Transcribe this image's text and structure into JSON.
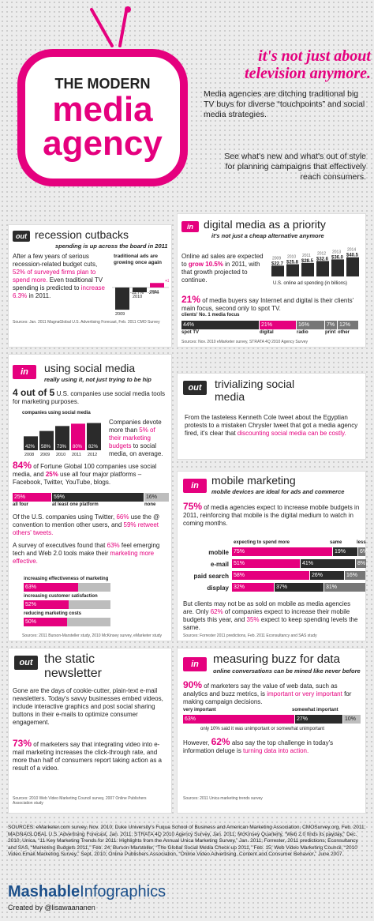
{
  "header": {
    "title_line1": "THE MODERN",
    "title_line2": "media",
    "title_line3": "agency",
    "tagline": "it's not just about television anymore.",
    "intro1": "Media agencies are ditching traditional big TV buys for diverse “touchpoints” and social media strategies.",
    "intro2": "See what's new and what's out of style for planning campaigns that effectively reach consumers."
  },
  "recession": {
    "tag": "out",
    "title": "recession cutbacks",
    "subtitle": "spending is up across the board in 2011",
    "text_pre": "After a few years of serious recession-related budget cuts, ",
    "text_pink": "52% of surveyed firms plan to spend more.",
    "text_mid": " Even traditional TV spending is predicted to ",
    "text_pink2": "increase 6.3%",
    "text_post": " in 2011.",
    "chart_title": "traditional ads are growing once again",
    "source": "Sources: Jan. 2011 MagnaGlobal U.S. Advertising Forecast, Feb. 2011 CMO Survey"
  },
  "digital": {
    "tag": "in",
    "title": "digital media as a priority",
    "subtitle": "it's not just a cheap alternative anymore",
    "text_pre": "Online ad sales are expected to ",
    "text_pink": "grow 10.5%",
    "text_post": " in 2011, with that growth projected to continue.",
    "chart_caption": "U.S. online ad spending (in billions)",
    "stat_big": "21%",
    "stat_text": " of media buyers say Internet and digital is their clients' main focus, second only to spot TV.",
    "focus_title": "clients' No. 1 media focus",
    "source": "Sources: Nov. 2010 eMarketer survey, STRATA 4Q 2010 Agency Survey"
  },
  "social": {
    "tag": "in",
    "title": "using social media",
    "subtitle": "really using it, not just trying to be hip",
    "stat_big": "4 out of 5",
    "stat_text": " U.S. companies use social media tools for marketing purposes.",
    "chart_title": "companies using social media",
    "devote_pre": "Companies devote more than ",
    "devote_pink": "5% of their marketing budgets",
    "devote_post": " to social media, on average.",
    "fortune_big": "84%",
    "fortune_text": " of Fortune Global 100 companies use social media, and ",
    "fortune_pink": "25%",
    "fortune_post": " use all four major platforms – Facebook, Twitter, YouTube, blogs.",
    "platform_labels": [
      "all four",
      "at least one platform",
      "none"
    ],
    "twitter_pre": "Of the U.S. companies using Twitter, ",
    "twitter_pink": "66%",
    "twitter_mid": " use the @ convention to mention other users, and ",
    "twitter_pink2": "59% retweet others' tweets.",
    "exec_pre": "A survey of executives found that ",
    "exec_pink": "63%",
    "exec_mid": " feel emerging tech and Web 2.0 tools make their ",
    "exec_pink2": "marketing more effective.",
    "effect_labels": [
      "increasing effectiveness of marketing",
      "increasing customer satisfaction",
      "reducing marketing costs"
    ],
    "source": "Sources: 2011 Burson-Marsteller study, 2010 McKinsey survey, eMarketer study"
  },
  "trivial": {
    "tag": "out",
    "title": "trivializing social media",
    "text_pre": "From the tasteless Kenneth Cole tweet about the Egyptian protests to a mistaken Chrysler tweet that got a media agency fired, it's clear that ",
    "text_pink": "discounting social media can be costly."
  },
  "mobile": {
    "tag": "in",
    "title": "mobile marketing",
    "subtitle": "mobile devices are ideal for ads and commerce",
    "stat_big": "75%",
    "stat_text": " of media agencies expect to increase mobile budgets in 2011, reinforcing that mobile is the digital medium to watch in coming months.",
    "legend": [
      "expecting to spend more",
      "same",
      "less"
    ],
    "note_pre": "But clients may not be as sold on mobile as media agencies are. Only ",
    "note_pink": "62%",
    "note_mid": " of companies expect to increase their mobile budgets this year, and ",
    "note_pink2": "35%",
    "note_post": " expect to keep spending levels the same.",
    "source": "Sources: Forrester 2011 predictions, Feb. 2011 Econsultancy and SAS study"
  },
  "newsletter": {
    "tag": "out",
    "title1": "the static",
    "title2": "newsletter",
    "text": "Gone are the days of cookie-cutter, plain-text e-mail newsletters. Today's savvy businesses embed videos, include interactive graphics and post social sharing buttons in their e-mails to optimize consumer engagement.",
    "stat_big": "73%",
    "stat_text": " of marketers say that integrating video into e-mail marketing increases the click-through rate, and more than half of consumers report taking action as a result of a video.",
    "source": "Sources: 2010 Web Video Marketing Council survey, 2007 Online Publishers Association study"
  },
  "buzz": {
    "tag": "in",
    "title": "measuring buzz for data",
    "subtitle": "online conversations can be mined like never before",
    "stat_big": "90%",
    "stat_text": " of marketers say the value of web data, such as analytics and buzz metrics, is ",
    "stat_pink": "important or very important",
    "stat_post": " for making campaign decisions.",
    "labels": [
      "very important",
      "somewhat important",
      "only 10% said it was unimportant or somewhat unimportant"
    ],
    "note_pre": "However, ",
    "note_big": "62%",
    "note_mid": " also say the top challenge in today's information deluge is ",
    "note_pink": "turning data into action.",
    "source": "Sources: 2011 Unica marketing trends survey"
  },
  "footer": {
    "sources": "SOURCES: eMarketer.com survey, Nov. 2010; Duke University's Fuqua School of Business and American Marketing Association, CMOSurvey.org, Feb. 2011; MAGNAGLOBAL U.S. Advertising Forecast, Jan. 2011; STRATA 4Q 2010 Agency Survey, Jan. 2011; McKinsey Quarterly, “Web 2.0 finds its payday,” Dec. 2010; Unica, “11 Key Marketing Trends for 2011: Highlights from the Annual Unica Marketing Survey,” Jan. 2011; Forrester, 2011 predictions; Econsultancy and SAS, “Marketing Budgets 2011,” Feb. 24; Burson-Marsteller, “The Global Social Media Check-up 2011,” Feb. 15; Web Video Marketing Council, “2010 Video Email Marketing Survey,” Sept. 2010; Online Publishers Association, “Online Video Advertising, Content and Consumer Behavior,” June 2007.",
    "brand_bold": "Mashable",
    "brand_light": "Infographics",
    "credit": "Created by @lisawaananen"
  },
  "chart_data": [
    {
      "type": "bar",
      "title": "traditional ads are growing once again",
      "categories": [
        "2009",
        "2010",
        "2011"
      ],
      "values": [
        -11.7,
        -2.5,
        2.4
      ],
      "value_labels": [
        "-11.7%",
        "-2.5%",
        "+2.4%"
      ]
    },
    {
      "type": "bar",
      "title": "U.S. online ad spending (in billions)",
      "categories": [
        "2009",
        "2010",
        "2011",
        "2012",
        "2013",
        "2014"
      ],
      "values": [
        22.7,
        25.8,
        28.5,
        32.6,
        36.0,
        40.5
      ],
      "value_labels": [
        "$22.7",
        "$25.8",
        "$28.5",
        "$32.6",
        "$36.0",
        "$40.5"
      ]
    },
    {
      "type": "bar",
      "title": "clients' No. 1 media focus",
      "categories": [
        "spot TV",
        "digital",
        "radio",
        "print",
        "other"
      ],
      "values": [
        44,
        21,
        16,
        7,
        12
      ]
    },
    {
      "type": "bar",
      "title": "companies using social media",
      "categories": [
        "2008",
        "2009",
        "2010",
        "2011",
        "2012"
      ],
      "values": [
        42,
        58,
        73,
        80,
        82
      ]
    },
    {
      "type": "bar",
      "title": "",
      "categories": [
        "all four",
        "at least one platform",
        "none"
      ],
      "values": [
        25,
        59,
        16
      ]
    },
    {
      "type": "bar",
      "title": "",
      "categories": [
        "increasing effectiveness of marketing",
        "increasing customer satisfaction",
        "reducing marketing costs"
      ],
      "values": [
        63,
        52,
        50
      ]
    },
    {
      "type": "bar",
      "title": "",
      "categories": [
        "mobile",
        "e-mail",
        "paid search",
        "display"
      ],
      "series": [
        {
          "name": "expecting to spend more",
          "values": [
            75,
            51,
            58,
            32
          ]
        },
        {
          "name": "same",
          "values": [
            19,
            41,
            26,
            37
          ]
        },
        {
          "name": "less",
          "values": [
            6,
            8,
            16,
            31
          ]
        }
      ]
    },
    {
      "type": "bar",
      "title": "",
      "categories": [
        "very important",
        "somewhat important",
        "unimportant"
      ],
      "values": [
        63,
        27,
        10
      ]
    }
  ]
}
